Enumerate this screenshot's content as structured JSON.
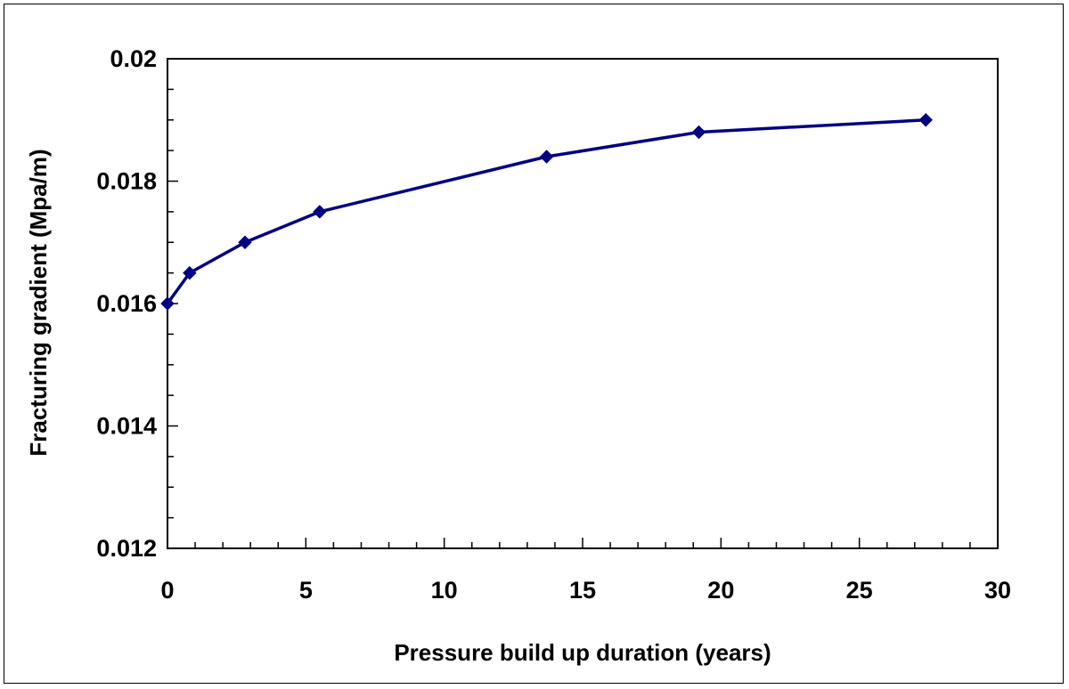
{
  "chart_data": {
    "type": "line",
    "title": "",
    "xlabel": "Pressure build up duration (years)",
    "ylabel": "Fracturing gradient (Mpa/m)",
    "xlim": [
      0,
      30
    ],
    "ylim": [
      0.012,
      0.02
    ],
    "x_ticks": [
      "0",
      "5",
      "10",
      "15",
      "20",
      "25",
      "30"
    ],
    "y_ticks": [
      "0.012",
      "0.014",
      "0.016",
      "0.018",
      "0.02"
    ],
    "x_tick_values": [
      0,
      5,
      10,
      15,
      20,
      25,
      30
    ],
    "y_tick_values": [
      0.012,
      0.014,
      0.016,
      0.018,
      0.02
    ],
    "x_minor_step": 1,
    "y_minor_step": 0.0005,
    "grid": false,
    "legend": "none",
    "marker": "diamond",
    "line_color": "#000080",
    "series": [
      {
        "x": [
          0,
          0.8,
          2.8,
          5.5,
          13.7,
          19.2,
          27.4
        ],
        "y": [
          0.016,
          0.0165,
          0.017,
          0.0175,
          0.0184,
          0.0188,
          0.019
        ]
      }
    ]
  }
}
